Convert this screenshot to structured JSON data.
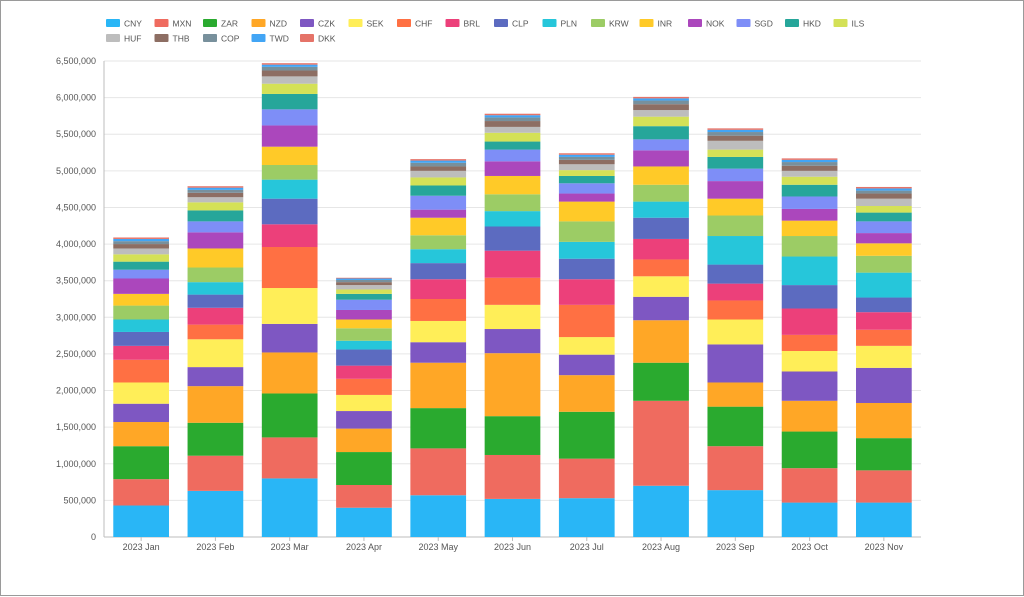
{
  "chart_data": {
    "type": "bar",
    "stacked": true,
    "categories": [
      "2023 Jan",
      "2023 Feb",
      "2023 Mar",
      "2023 Apr",
      "2023 May",
      "2023 Jun",
      "2023 Jul",
      "2023 Aug",
      "2023 Sep",
      "2023 Oct",
      "2023 Nov"
    ],
    "ylim": [
      0,
      6500000
    ],
    "yticks": [
      0,
      500000,
      1000000,
      1500000,
      2000000,
      2500000,
      3000000,
      3500000,
      4000000,
      4500000,
      5000000,
      5500000,
      6000000,
      6500000
    ],
    "ytick_labels": [
      "0",
      "500,000",
      "1,000,000",
      "1,500,000",
      "2,000,000",
      "2,500,000",
      "3,000,000",
      "3,500,000",
      "4,000,000",
      "4,500,000",
      "5,000,000",
      "5,500,000",
      "6,000,000",
      "6,500,000"
    ],
    "grid": true,
    "legend_position": "top-left",
    "series": [
      {
        "name": "CNY",
        "color": "#29b6f6",
        "values": [
          430000,
          630000,
          800000,
          400000,
          570000,
          520000,
          530000,
          700000,
          640000,
          470000,
          470000
        ]
      },
      {
        "name": "MXN",
        "color": "#ef6b5f",
        "values": [
          360000,
          480000,
          560000,
          310000,
          640000,
          600000,
          540000,
          1160000,
          600000,
          470000,
          440000
        ]
      },
      {
        "name": "ZAR",
        "color": "#2aaa2f",
        "values": [
          450000,
          450000,
          600000,
          450000,
          550000,
          530000,
          640000,
          520000,
          540000,
          500000,
          440000
        ]
      },
      {
        "name": "NZD",
        "color": "#ffa726",
        "values": [
          330000,
          500000,
          560000,
          320000,
          620000,
          860000,
          500000,
          580000,
          330000,
          420000,
          480000
        ]
      },
      {
        "name": "CZK",
        "color": "#7e57c2",
        "values": [
          250000,
          260000,
          390000,
          240000,
          280000,
          330000,
          280000,
          320000,
          520000,
          400000,
          480000
        ]
      },
      {
        "name": "SEK",
        "color": "#ffee58",
        "values": [
          290000,
          380000,
          490000,
          220000,
          290000,
          330000,
          240000,
          280000,
          340000,
          280000,
          300000
        ]
      },
      {
        "name": "CHF",
        "color": "#ff7043",
        "values": [
          310000,
          200000,
          560000,
          220000,
          300000,
          370000,
          440000,
          230000,
          260000,
          220000,
          220000
        ]
      },
      {
        "name": "BRL",
        "color": "#ec407a",
        "values": [
          190000,
          230000,
          310000,
          180000,
          270000,
          370000,
          350000,
          280000,
          230000,
          360000,
          240000
        ]
      },
      {
        "name": "CLP",
        "color": "#5c6bc0",
        "values": [
          190000,
          180000,
          350000,
          220000,
          220000,
          330000,
          280000,
          290000,
          260000,
          320000,
          200000
        ]
      },
      {
        "name": "PLN",
        "color": "#26c6da",
        "values": [
          170000,
          170000,
          260000,
          120000,
          190000,
          210000,
          230000,
          220000,
          390000,
          390000,
          340000
        ]
      },
      {
        "name": "KRW",
        "color": "#9ccc65",
        "values": [
          190000,
          200000,
          200000,
          170000,
          190000,
          230000,
          280000,
          230000,
          280000,
          280000,
          230000
        ]
      },
      {
        "name": "INR",
        "color": "#ffca28",
        "values": [
          160000,
          260000,
          250000,
          120000,
          240000,
          250000,
          270000,
          250000,
          230000,
          210000,
          170000
        ]
      },
      {
        "name": "NOK",
        "color": "#ab47bc",
        "values": [
          210000,
          220000,
          290000,
          130000,
          110000,
          200000,
          110000,
          220000,
          240000,
          160000,
          140000
        ]
      },
      {
        "name": "SGD",
        "color": "#7e8ef7",
        "values": [
          120000,
          150000,
          220000,
          140000,
          190000,
          160000,
          140000,
          150000,
          170000,
          170000,
          160000
        ]
      },
      {
        "name": "HKD",
        "color": "#26a69a",
        "values": [
          110000,
          150000,
          210000,
          80000,
          140000,
          110000,
          100000,
          180000,
          160000,
          160000,
          120000
        ]
      },
      {
        "name": "ILS",
        "color": "#d4e157",
        "values": [
          100000,
          110000,
          140000,
          60000,
          110000,
          120000,
          80000,
          130000,
          100000,
          110000,
          90000
        ]
      },
      {
        "name": "HUF",
        "color": "#bdbdbd",
        "values": [
          80000,
          70000,
          100000,
          60000,
          90000,
          80000,
          80000,
          90000,
          120000,
          80000,
          100000
        ]
      },
      {
        "name": "THB",
        "color": "#8d6e63",
        "values": [
          60000,
          60000,
          80000,
          40000,
          60000,
          80000,
          60000,
          80000,
          70000,
          70000,
          70000
        ]
      },
      {
        "name": "COP",
        "color": "#78909c",
        "values": [
          40000,
          40000,
          50000,
          30000,
          50000,
          50000,
          40000,
          50000,
          50000,
          50000,
          40000
        ]
      },
      {
        "name": "TWD",
        "color": "#42a5f5",
        "values": [
          30000,
          30000,
          30000,
          20000,
          30000,
          30000,
          30000,
          30000,
          30000,
          30000,
          30000
        ]
      },
      {
        "name": "DKK",
        "color": "#e57368",
        "values": [
          20000,
          20000,
          20000,
          10000,
          20000,
          20000,
          20000,
          20000,
          20000,
          20000,
          20000
        ]
      }
    ]
  }
}
